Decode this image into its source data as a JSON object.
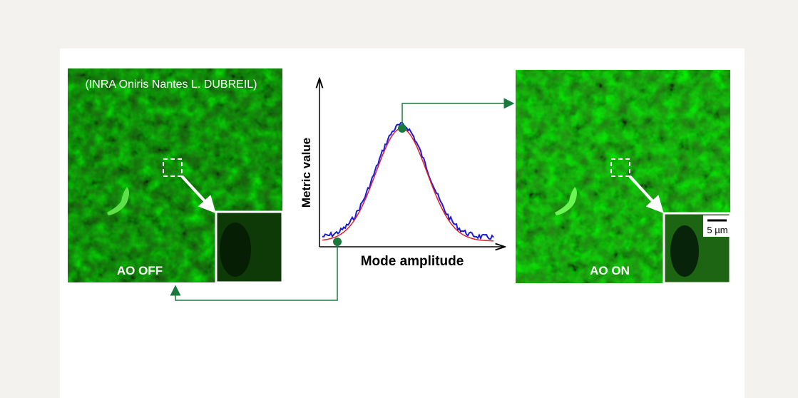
{
  "credit": "(INRA Oniris Nantes  L. DUBREIL)",
  "left_image": {
    "label": "AO OFF"
  },
  "right_image": {
    "label": "AO ON",
    "scale_bar": "5 µm"
  },
  "plot": {
    "y_label": "Metric value",
    "x_label": "Mode amplitude"
  }
}
